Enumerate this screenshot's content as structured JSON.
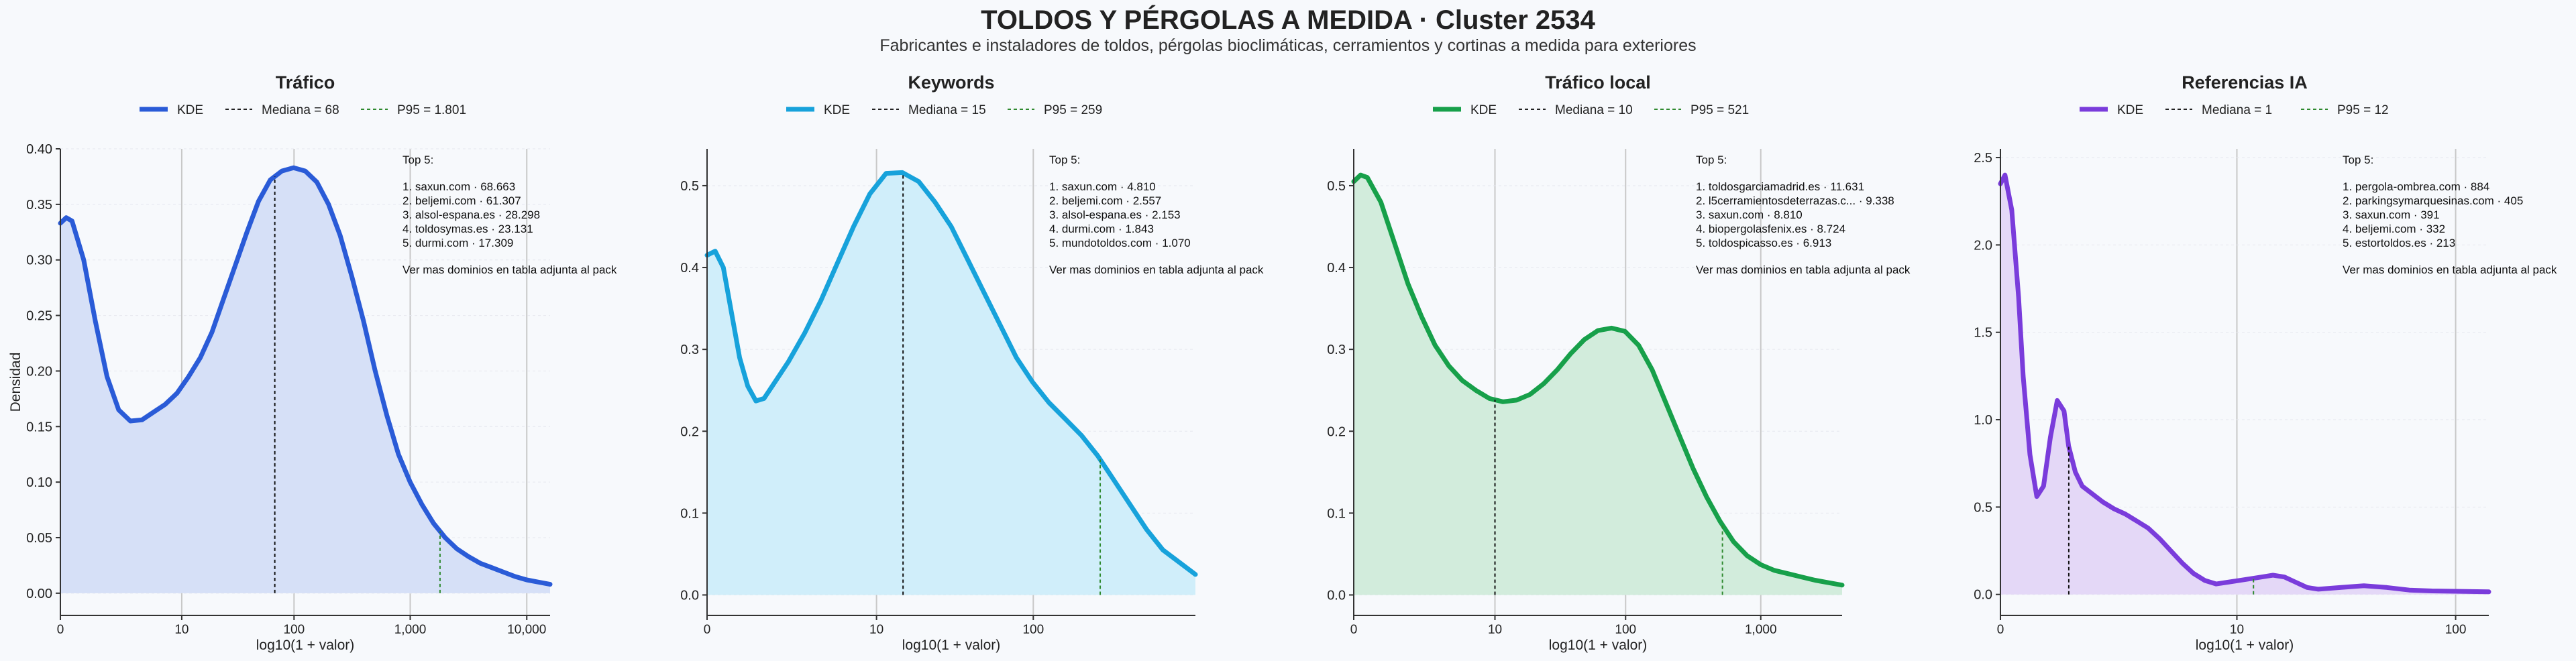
{
  "header": {
    "title": "TOLDOS Y PÉRGOLAS A MEDIDA · Cluster 2534",
    "subtitle": "Fabricantes e instaladores de toldos, pérgolas bioclimáticas, cerramientos y cortinas a medida para exteriores"
  },
  "shared": {
    "xlabel": "log10(1 + valor)",
    "ylabel": "Densidad",
    "legend_kde": "KDE",
    "footer_note": "Ver mas dominios en tabla adjunta al pack",
    "top_heading": "Top 5:"
  },
  "chart_data": [
    {
      "type": "area",
      "title": "Tráfico",
      "color": "#2a5bd7",
      "fill": "#d6e0f7",
      "xlabel": "log10(1 + valor)",
      "ylabel": "Densidad",
      "xlim": [
        0,
        4.2
      ],
      "ylim": [
        -0.02,
        0.4
      ],
      "xticks": [
        {
          "v": 0,
          "label": "0"
        },
        {
          "v": 1.041,
          "label": "10"
        },
        {
          "v": 2.004,
          "label": "100"
        },
        {
          "v": 3.0004,
          "label": "1,000"
        },
        {
          "v": 4.0,
          "label": "10,000"
        }
      ],
      "yticks": [
        {
          "v": 0,
          "label": "0.00"
        },
        {
          "v": 0.05,
          "label": "0.05"
        },
        {
          "v": 0.1,
          "label": "0.10"
        },
        {
          "v": 0.15,
          "label": "0.15"
        },
        {
          "v": 0.2,
          "label": "0.20"
        },
        {
          "v": 0.25,
          "label": "0.25"
        },
        {
          "v": 0.3,
          "label": "0.30"
        },
        {
          "v": 0.35,
          "label": "0.35"
        },
        {
          "v": 0.4,
          "label": "0.40"
        }
      ],
      "x": [
        0,
        0.05,
        0.1,
        0.2,
        0.3,
        0.4,
        0.5,
        0.6,
        0.7,
        0.8,
        0.9,
        1.0,
        1.1,
        1.2,
        1.3,
        1.4,
        1.5,
        1.6,
        1.7,
        1.8,
        1.9,
        2.0,
        2.1,
        2.2,
        2.3,
        2.4,
        2.5,
        2.6,
        2.7,
        2.8,
        2.9,
        3.0,
        3.1,
        3.2,
        3.3,
        3.4,
        3.5,
        3.6,
        3.7,
        3.8,
        3.9,
        4.0,
        4.1,
        4.2
      ],
      "y": [
        0.333,
        0.338,
        0.335,
        0.3,
        0.245,
        0.195,
        0.165,
        0.155,
        0.156,
        0.163,
        0.17,
        0.18,
        0.195,
        0.212,
        0.235,
        0.265,
        0.295,
        0.325,
        0.353,
        0.372,
        0.38,
        0.383,
        0.38,
        0.37,
        0.35,
        0.322,
        0.285,
        0.245,
        0.2,
        0.16,
        0.125,
        0.1,
        0.08,
        0.063,
        0.05,
        0.04,
        0.033,
        0.027,
        0.023,
        0.019,
        0.015,
        0.012,
        0.01,
        0.008
      ],
      "median": {
        "x": 1.839,
        "label": "Mediana = 68"
      },
      "p95": {
        "x": 3.256,
        "label": "P95 = 1.801"
      },
      "top5": [
        "1. saxun.com · 68.663",
        "2. beljemi.com · 61.307",
        "3. alsol-espana.es · 28.298",
        "4. toldosymas.es · 23.131",
        "5. durmi.com · 17.309"
      ]
    },
    {
      "type": "area",
      "title": "Keywords",
      "color": "#17a2db",
      "fill": "#d0eefa",
      "xlabel": "log10(1 + valor)",
      "ylabel": "",
      "xlim": [
        0,
        3.0
      ],
      "ylim": [
        -0.025,
        0.545
      ],
      "xticks": [
        {
          "v": 0,
          "label": "0"
        },
        {
          "v": 1.041,
          "label": "10"
        },
        {
          "v": 2.004,
          "label": "100"
        },
        {
          "v": 3.0004,
          "label": "1,000"
        }
      ],
      "yticks": [
        {
          "v": 0,
          "label": "0.0"
        },
        {
          "v": 0.1,
          "label": "0.1"
        },
        {
          "v": 0.2,
          "label": "0.2"
        },
        {
          "v": 0.3,
          "label": "0.3"
        },
        {
          "v": 0.4,
          "label": "0.4"
        },
        {
          "v": 0.5,
          "label": "0.5"
        }
      ],
      "x": [
        0,
        0.05,
        0.1,
        0.15,
        0.2,
        0.25,
        0.3,
        0.35,
        0.4,
        0.5,
        0.6,
        0.7,
        0.8,
        0.9,
        1.0,
        1.1,
        1.2,
        1.3,
        1.4,
        1.5,
        1.6,
        1.7,
        1.8,
        1.9,
        2.0,
        2.1,
        2.2,
        2.3,
        2.4,
        2.5,
        2.6,
        2.7,
        2.8,
        2.9,
        3.0
      ],
      "y": [
        0.415,
        0.42,
        0.4,
        0.345,
        0.29,
        0.255,
        0.237,
        0.24,
        0.255,
        0.285,
        0.32,
        0.36,
        0.405,
        0.45,
        0.49,
        0.515,
        0.516,
        0.505,
        0.48,
        0.45,
        0.41,
        0.37,
        0.33,
        0.29,
        0.26,
        0.235,
        0.215,
        0.195,
        0.17,
        0.14,
        0.11,
        0.08,
        0.055,
        0.04,
        0.025
      ],
      "median": {
        "x": 1.204,
        "label": "Mediana = 15"
      },
      "p95": {
        "x": 2.415,
        "label": "P95 = 259"
      },
      "top5": [
        "1. saxun.com · 4.810",
        "2. beljemi.com · 2.557",
        "3. alsol-espana.es · 2.153",
        "4. durmi.com · 1.843",
        "5. mundotoldos.com · 1.070"
      ]
    },
    {
      "type": "area",
      "title": "Tráfico local",
      "color": "#17a04a",
      "fill": "#d2ecdc",
      "xlabel": "log10(1 + valor)",
      "ylabel": "",
      "xlim": [
        0,
        3.6
      ],
      "ylim": [
        -0.025,
        0.545
      ],
      "xticks": [
        {
          "v": 0,
          "label": "0"
        },
        {
          "v": 1.041,
          "label": "10"
        },
        {
          "v": 2.004,
          "label": "100"
        },
        {
          "v": 3.0004,
          "label": "1,000"
        }
      ],
      "yticks": [
        {
          "v": 0,
          "label": "0.0"
        },
        {
          "v": 0.1,
          "label": "0.1"
        },
        {
          "v": 0.2,
          "label": "0.2"
        },
        {
          "v": 0.3,
          "label": "0.3"
        },
        {
          "v": 0.4,
          "label": "0.4"
        },
        {
          "v": 0.5,
          "label": "0.5"
        }
      ],
      "x": [
        0,
        0.05,
        0.1,
        0.2,
        0.3,
        0.4,
        0.5,
        0.6,
        0.7,
        0.8,
        0.9,
        1.0,
        1.1,
        1.2,
        1.3,
        1.4,
        1.5,
        1.6,
        1.7,
        1.8,
        1.9,
        2.0,
        2.1,
        2.2,
        2.3,
        2.4,
        2.5,
        2.6,
        2.7,
        2.8,
        2.9,
        3.0,
        3.1,
        3.2,
        3.3,
        3.4,
        3.5,
        3.6
      ],
      "y": [
        0.505,
        0.513,
        0.51,
        0.48,
        0.43,
        0.38,
        0.34,
        0.305,
        0.28,
        0.262,
        0.25,
        0.24,
        0.236,
        0.238,
        0.245,
        0.258,
        0.275,
        0.295,
        0.312,
        0.323,
        0.326,
        0.322,
        0.305,
        0.275,
        0.235,
        0.195,
        0.155,
        0.12,
        0.09,
        0.065,
        0.048,
        0.037,
        0.03,
        0.026,
        0.022,
        0.018,
        0.015,
        0.012
      ],
      "median": {
        "x": 1.041,
        "label": "Mediana = 10"
      },
      "p95": {
        "x": 2.718,
        "label": "P95 = 521"
      },
      "top5": [
        "1. toldosgarciamadrid.es · 11.631",
        "2. l5cerramientosdeterrazas.c... · 9.338",
        "3. saxun.com · 8.810",
        "4. biopergolasfenix.es · 8.724",
        "5. toldospicasso.es · 6.913"
      ]
    },
    {
      "type": "area",
      "title": "Referencias IA",
      "color": "#7a3cdb",
      "fill": "#e4d8f7",
      "xlabel": "log10(1 + valor)",
      "ylabel": "",
      "xlim": [
        0,
        2.15
      ],
      "ylim": [
        -0.12,
        2.55
      ],
      "xticks": [
        {
          "v": 0,
          "label": "0"
        },
        {
          "v": 1.041,
          "label": "10"
        },
        {
          "v": 2.004,
          "label": "100"
        }
      ],
      "yticks": [
        {
          "v": 0,
          "label": "0.0"
        },
        {
          "v": 0.5,
          "label": "0.5"
        },
        {
          "v": 1.0,
          "label": "1.0"
        },
        {
          "v": 1.5,
          "label": "1.5"
        },
        {
          "v": 2.0,
          "label": "2.0"
        },
        {
          "v": 2.5,
          "label": "2.5"
        }
      ],
      "x": [
        0,
        0.02,
        0.05,
        0.08,
        0.1,
        0.13,
        0.16,
        0.19,
        0.22,
        0.25,
        0.28,
        0.3,
        0.33,
        0.36,
        0.4,
        0.45,
        0.5,
        0.55,
        0.6,
        0.65,
        0.7,
        0.75,
        0.8,
        0.85,
        0.9,
        0.95,
        1.0,
        1.05,
        1.1,
        1.15,
        1.2,
        1.25,
        1.3,
        1.35,
        1.4,
        1.5,
        1.6,
        1.7,
        1.8,
        1.9,
        2.0,
        2.15
      ],
      "y": [
        2.35,
        2.4,
        2.2,
        1.7,
        1.25,
        0.8,
        0.56,
        0.62,
        0.9,
        1.11,
        1.05,
        0.85,
        0.7,
        0.62,
        0.58,
        0.53,
        0.49,
        0.46,
        0.42,
        0.38,
        0.32,
        0.25,
        0.18,
        0.12,
        0.08,
        0.06,
        0.07,
        0.08,
        0.09,
        0.1,
        0.11,
        0.1,
        0.07,
        0.04,
        0.03,
        0.04,
        0.05,
        0.04,
        0.025,
        0.02,
        0.018,
        0.015
      ],
      "median": {
        "x": 0.301,
        "label": "Mediana = 1"
      },
      "p95": {
        "x": 1.114,
        "label": "P95 = 12"
      },
      "top5": [
        "1. pergola-ombrea.com · 884",
        "2. parkingsymarquesinas.com · 405",
        "3. saxun.com · 391",
        "4. beljemi.com · 332",
        "5. estortoldos.es · 213"
      ]
    }
  ]
}
